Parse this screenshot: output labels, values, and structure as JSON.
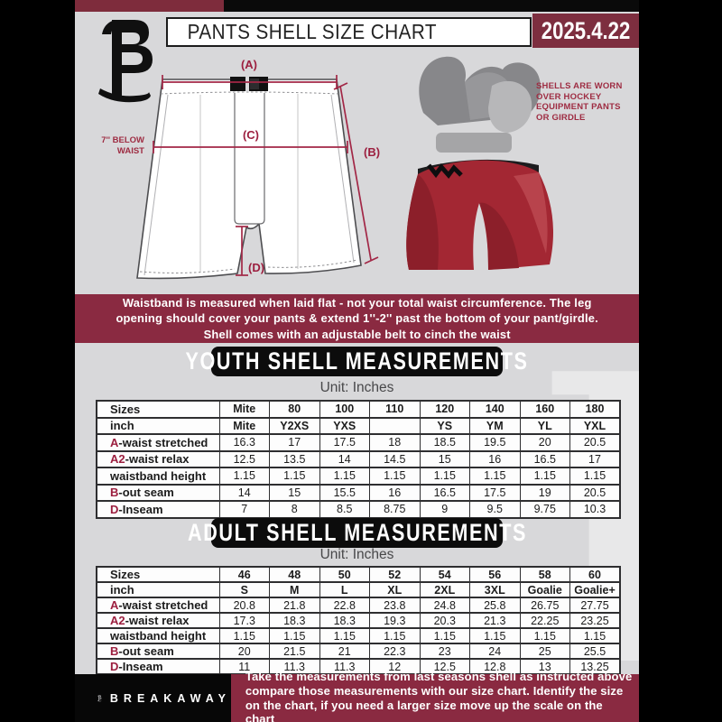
{
  "header": {
    "title": "PANTS SHELL SIZE CHART",
    "date": "2025.4.22"
  },
  "diagram": {
    "label_a": "(A)",
    "label_b": "(B)",
    "label_c": "(C)",
    "label_d": "(D)",
    "side_note_line1": "7'' BELOW",
    "side_note_line2": "WAIST",
    "photo_caption": "SHELLS ARE WORN\nOVER HOCKEY\nEQUIPMENT PANTS\nOR GIRDLE"
  },
  "notice": "Waistband is measured when laid flat - not your total waist circumference. The leg\nopening should cover your pants & extend 1''-2'' past the bottom of your pant/girdle.\nShell comes with an adjustable belt to cinch the waist",
  "youth": {
    "title": "YOUTH SHELL MEASUREMENTS",
    "unit": "Unit: Inches",
    "rows": [
      {
        "prefix": "",
        "label": "Sizes",
        "bold": true,
        "cells": [
          "Mite",
          "80",
          "100",
          "110",
          "120",
          "140",
          "160",
          "180"
        ]
      },
      {
        "prefix": "",
        "label": "inch",
        "bold": true,
        "cells": [
          "Mite",
          "Y2XS",
          "YXS",
          "",
          "YS",
          "YM",
          "YL",
          "YXL"
        ]
      },
      {
        "prefix": "A",
        "label": "-waist stretched",
        "bold": false,
        "cells": [
          "16.3",
          "17",
          "17.5",
          "18",
          "18.5",
          "19.5",
          "20",
          "20.5"
        ]
      },
      {
        "prefix": "A2",
        "label": "-waist relax",
        "bold": false,
        "cells": [
          "12.5",
          "13.5",
          "14",
          "14.5",
          "15",
          "16",
          "16.5",
          "17"
        ]
      },
      {
        "prefix": "",
        "label": "waistband height",
        "bold": false,
        "cells": [
          "1.15",
          "1.15",
          "1.15",
          "1.15",
          "1.15",
          "1.15",
          "1.15",
          "1.15"
        ]
      },
      {
        "prefix": "B",
        "label": "-out seam",
        "bold": false,
        "cells": [
          "14",
          "15",
          "15.5",
          "16",
          "16.5",
          "17.5",
          "19",
          "20.5"
        ]
      },
      {
        "prefix": "D",
        "label": "-Inseam",
        "bold": false,
        "cells": [
          "7",
          "8",
          "8.5",
          "8.75",
          "9",
          "9.5",
          "9.75",
          "10.3"
        ]
      }
    ]
  },
  "adult": {
    "title": "ADULT SHELL MEASUREMENTS",
    "unit": "Unit: Inches",
    "rows": [
      {
        "prefix": "",
        "label": "Sizes",
        "bold": true,
        "cells": [
          "46",
          "48",
          "50",
          "52",
          "54",
          "56",
          "58",
          "60"
        ]
      },
      {
        "prefix": "",
        "label": "inch",
        "bold": true,
        "cells": [
          "S",
          "M",
          "L",
          "XL",
          "2XL",
          "3XL",
          "Goalie",
          "Goalie+"
        ]
      },
      {
        "prefix": "A",
        "label": "-waist stretched",
        "bold": false,
        "cells": [
          "20.8",
          "21.8",
          "22.8",
          "23.8",
          "24.8",
          "25.8",
          "26.75",
          "27.75"
        ]
      },
      {
        "prefix": "A2",
        "label": "-waist relax",
        "bold": false,
        "cells": [
          "17.3",
          "18.3",
          "18.3",
          "19.3",
          "20.3",
          "21.3",
          "22.25",
          "23.25"
        ]
      },
      {
        "prefix": "",
        "label": "waistband height",
        "bold": false,
        "cells": [
          "1.15",
          "1.15",
          "1.15",
          "1.15",
          "1.15",
          "1.15",
          "1.15",
          "1.15"
        ]
      },
      {
        "prefix": "B",
        "label": "-out seam",
        "bold": false,
        "cells": [
          "20",
          "21.5",
          "21",
          "22.3",
          "23",
          "24",
          "25",
          "25.5"
        ]
      },
      {
        "prefix": "D",
        "label": "-Inseam",
        "bold": false,
        "cells": [
          "11",
          "11.3",
          "11.3",
          "12",
          "12.5",
          "12.8",
          "13",
          "13.25"
        ]
      }
    ]
  },
  "footer": {
    "brand": "BREAKAWAY",
    "note": "Take the measurements from last seasons shell as instructed above\ncompare those measurements  with our size chart. Identify the size\non the chart, if you need a larger size move up the scale on the chart"
  },
  "watermark_letter": "B",
  "colors": {
    "maroon": "#8a2a41",
    "badge_red": "#7d2e3f",
    "measure_red": "#a22746",
    "banner_black": "#0c0c0c"
  }
}
